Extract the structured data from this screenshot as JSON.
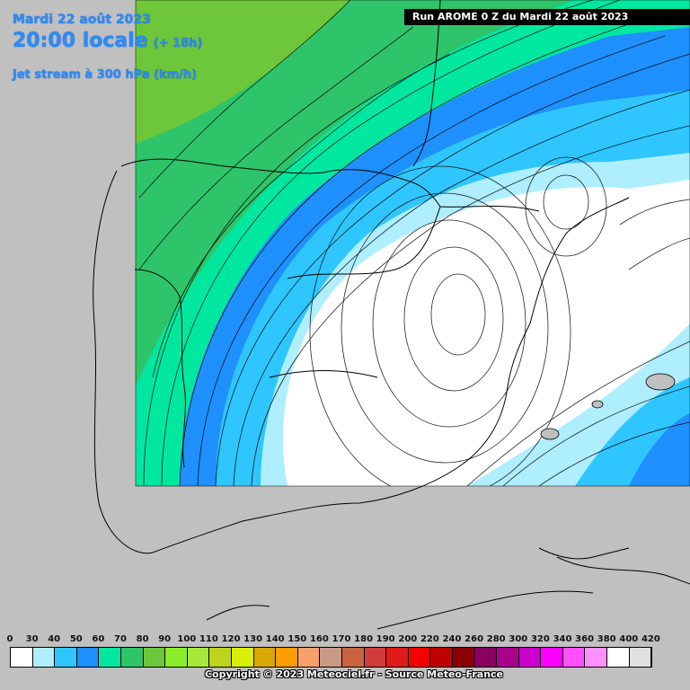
{
  "header": {
    "date": "Mardi 22 août 2023",
    "time": "20:00 locale",
    "lead": "(+ 18h)",
    "parameter": "Jet stream à 300 hPa (km/h)"
  },
  "run_banner": "Run AROME 0 Z du Mardi 22 août 2023",
  "legend": {
    "ticks": [
      "0",
      "30",
      "40",
      "50",
      "60",
      "70",
      "80",
      "90",
      "100",
      "110",
      "120",
      "130",
      "140",
      "150",
      "160",
      "170",
      "180",
      "190",
      "200",
      "220",
      "240",
      "260",
      "280",
      "300",
      "320",
      "340",
      "360",
      "380",
      "400",
      "420"
    ],
    "colors": [
      "#ffffff",
      "#aeeeff",
      "#2fc6ff",
      "#1e90ff",
      "#00e8a0",
      "#2ec46a",
      "#6ec63a",
      "#8cee28",
      "#a6e83c",
      "#bed41c",
      "#d8f008",
      "#d8a800",
      "#ff9c00",
      "#f9a06a",
      "#c89a88",
      "#c86440",
      "#d03c3c",
      "#e01a1a",
      "#f40000",
      "#c00000",
      "#8a0000",
      "#8a0060",
      "#a8008c",
      "#cc00cc",
      "#ff00ff",
      "#ff50ff",
      "#ff90ff",
      "#ffffff",
      "#e0e0e0"
    ],
    "copyright": "Copyright © 2023 Meteociel.fr - Source Meteo-France"
  },
  "map": {
    "region": "Iberian Peninsula and Western Mediterranean",
    "land_color": "#c0c0c0",
    "border_color": "#000000",
    "jet_core": "low centered over northeastern Spain",
    "wind_bands": [
      {
        "range_kmh": "< 30",
        "color": "#ffffff"
      },
      {
        "range_kmh": "30-40",
        "color": "#aeeeff"
      },
      {
        "range_kmh": "40-50",
        "color": "#2fc6ff"
      },
      {
        "range_kmh": "50-60",
        "color": "#1e90ff"
      },
      {
        "range_kmh": "60-70",
        "color": "#00e8a0"
      },
      {
        "range_kmh": "70-80",
        "color": "#2ec46a"
      },
      {
        "range_kmh": "80-90",
        "color": "#6ec63a"
      }
    ]
  }
}
